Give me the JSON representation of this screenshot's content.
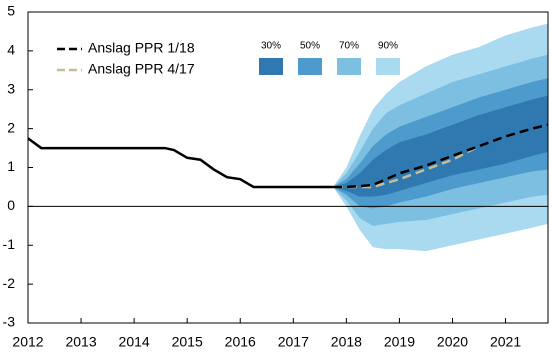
{
  "chart_data": {
    "type": "fan",
    "xlim": [
      2012,
      2021.8
    ],
    "xticks": [
      2012,
      2013,
      2014,
      2015,
      2016,
      2017,
      2018,
      2019,
      2020,
      2021
    ],
    "ylim": [
      -3,
      5
    ],
    "yticks": [
      -3,
      -2,
      -1,
      0,
      1,
      2,
      3,
      4,
      5
    ],
    "bands": [
      {
        "name": "90%",
        "color": "#a9daf0",
        "x": [
          2017.75,
          2018,
          2018.25,
          2018.5,
          2018.75,
          2019,
          2019.5,
          2020,
          2020.5,
          2021,
          2021.5,
          2021.8
        ],
        "upper": [
          0.5,
          1.0,
          1.8,
          2.5,
          2.9,
          3.2,
          3.6,
          3.9,
          4.1,
          4.4,
          4.6,
          4.7
        ],
        "lower": [
          0.5,
          0.0,
          -0.6,
          -1.05,
          -1.1,
          -1.1,
          -1.15,
          -1.0,
          -0.85,
          -0.7,
          -0.55,
          -0.45
        ]
      },
      {
        "name": "70%",
        "color": "#7cbfe0",
        "x": [
          2017.75,
          2018,
          2018.25,
          2018.5,
          2018.75,
          2019,
          2019.5,
          2020,
          2020.5,
          2021,
          2021.5,
          2021.8
        ],
        "upper": [
          0.5,
          0.85,
          1.4,
          2.0,
          2.4,
          2.6,
          2.9,
          3.2,
          3.4,
          3.6,
          3.8,
          3.9
        ],
        "lower": [
          0.5,
          0.15,
          -0.3,
          -0.5,
          -0.45,
          -0.4,
          -0.35,
          -0.2,
          -0.05,
          0.1,
          0.25,
          0.3
        ]
      },
      {
        "name": "50%",
        "color": "#4c9bcc",
        "x": [
          2017.75,
          2018,
          2018.25,
          2018.5,
          2018.75,
          2019,
          2019.5,
          2020,
          2020.5,
          2021,
          2021.5,
          2021.8
        ],
        "upper": [
          0.5,
          0.7,
          1.1,
          1.55,
          1.85,
          2.05,
          2.3,
          2.55,
          2.8,
          3.0,
          3.2,
          3.3
        ],
        "lower": [
          0.5,
          0.3,
          0.0,
          -0.05,
          0.0,
          0.1,
          0.25,
          0.45,
          0.6,
          0.75,
          0.9,
          0.95
        ]
      },
      {
        "name": "30%",
        "color": "#2f79b0",
        "x": [
          2017.75,
          2018,
          2018.25,
          2018.5,
          2018.75,
          2019,
          2019.5,
          2020,
          2020.5,
          2021,
          2021.5,
          2021.8
        ],
        "upper": [
          0.5,
          0.6,
          0.85,
          1.2,
          1.45,
          1.65,
          1.85,
          2.1,
          2.35,
          2.55,
          2.75,
          2.85
        ],
        "lower": [
          0.5,
          0.4,
          0.25,
          0.25,
          0.3,
          0.4,
          0.6,
          0.8,
          0.95,
          1.1,
          1.3,
          1.4
        ]
      }
    ],
    "series": [
      {
        "name": "Anslag PPR 4/17",
        "color": "#c8bc98",
        "dashed": true,
        "x": [
          2017.5,
          2018,
          2018.5,
          2019,
          2019.5,
          2020,
          2020.5
        ],
        "values": [
          0.5,
          0.5,
          0.5,
          0.7,
          0.95,
          1.2,
          1.55
        ]
      },
      {
        "color": "#000000",
        "dashed": false,
        "x": [
          2012,
          2012.25,
          2014.58,
          2014.75,
          2015,
          2015.25,
          2015.5,
          2015.75,
          2016,
          2016.25,
          2017.75
        ],
        "values": [
          1.75,
          1.5,
          1.5,
          1.45,
          1.25,
          1.2,
          0.95,
          0.75,
          0.7,
          0.5,
          0.5
        ]
      },
      {
        "name": "Anslag PPR 1/18",
        "color": "#000000",
        "dashed": true,
        "x": [
          2017.75,
          2018,
          2018.25,
          2018.5,
          2018.75,
          2019,
          2019.5,
          2020,
          2020.5,
          2021,
          2021.5,
          2021.8
        ],
        "values": [
          0.5,
          0.5,
          0.52,
          0.55,
          0.7,
          0.85,
          1.05,
          1.3,
          1.55,
          1.8,
          2.0,
          2.1
        ]
      }
    ]
  }
}
